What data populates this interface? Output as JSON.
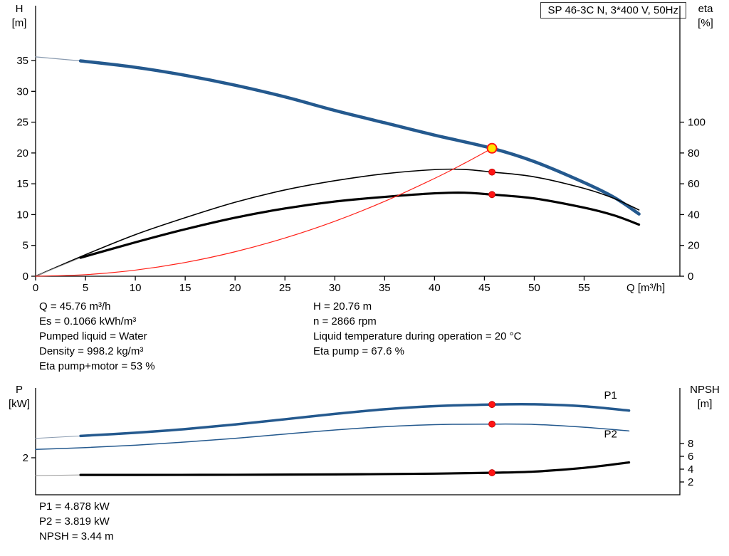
{
  "colors": {
    "curve_blue": "#24598e",
    "curve_black": "#000000",
    "system_red": "#ff2018",
    "dot_red": "#ff1414",
    "dot_stroke": "#c00000",
    "duty_yellow": "#ffe600"
  },
  "chart_data": [
    {
      "id": "qh-chart",
      "type": "line",
      "title_box": "SP 46-3C N, 3*400 V, 50Hz",
      "x_axis": {
        "label": "Q [m³/h]",
        "min": 0,
        "max": 64.6,
        "ticks": [
          0,
          5,
          10,
          15,
          20,
          25,
          30,
          35,
          40,
          45,
          50,
          55
        ]
      },
      "y_left": {
        "name": "H",
        "unit": "[m]",
        "min": 0,
        "max": 43.9,
        "ticks": [
          0,
          5,
          10,
          15,
          20,
          25,
          30,
          35
        ]
      },
      "y_right": {
        "name": "eta",
        "unit": "[%]",
        "min": 0,
        "max": 175.6,
        "ticks": [
          0,
          20,
          40,
          60,
          80,
          100
        ]
      },
      "curves": [
        {
          "name": "head-curve-lead",
          "axis": "left",
          "color": "#8a9bb0",
          "width": 1.2,
          "points": [
            [
              0,
              35.6
            ],
            [
              4.5,
              34.95
            ]
          ]
        },
        {
          "name": "head-curve",
          "axis": "left",
          "color": "#24598e",
          "width": 4.5,
          "points": [
            [
              4.5,
              34.95
            ],
            [
              10,
              33.9
            ],
            [
              15,
              32.6
            ],
            [
              20,
              31.0
            ],
            [
              25,
              29.1
            ],
            [
              30,
              26.9
            ],
            [
              35,
              24.9
            ],
            [
              40,
              22.9
            ],
            [
              45.76,
              20.76
            ],
            [
              50,
              18.6
            ],
            [
              55,
              15.2
            ],
            [
              58,
              12.8
            ],
            [
              60.5,
              10.1
            ]
          ]
        },
        {
          "name": "eta-pump-curve",
          "axis": "right",
          "color": "#000000",
          "width": 1.6,
          "points": [
            [
              0,
              0
            ],
            [
              5,
              14
            ],
            [
              10,
              27
            ],
            [
              15,
              38
            ],
            [
              20,
              48
            ],
            [
              25,
              56
            ],
            [
              30,
              62
            ],
            [
              35,
              66.5
            ],
            [
              40,
              69.2
            ],
            [
              43,
              69.3
            ],
            [
              45.76,
              67.6
            ],
            [
              50,
              64.5
            ],
            [
              55,
              57
            ],
            [
              58,
              50.5
            ],
            [
              60.5,
              43
            ]
          ]
        },
        {
          "name": "eta-pump-motor-lead",
          "axis": "right",
          "color": "#999999",
          "width": 1,
          "points": [
            [
              0,
              0
            ],
            [
              4.5,
              12
            ]
          ]
        },
        {
          "name": "eta-pump-motor-curve",
          "axis": "right",
          "color": "#000000",
          "width": 3.2,
          "points": [
            [
              4.5,
              12
            ],
            [
              10,
              22
            ],
            [
              15,
              30.5
            ],
            [
              20,
              38
            ],
            [
              25,
              44
            ],
            [
              30,
              48.5
            ],
            [
              35,
              51.5
            ],
            [
              40,
              53.8
            ],
            [
              43,
              54.2
            ],
            [
              45.76,
              53
            ],
            [
              50,
              50.5
            ],
            [
              55,
              44.5
            ],
            [
              58,
              39.5
            ],
            [
              60.5,
              33.5
            ]
          ]
        },
        {
          "name": "system-curve",
          "axis": "left",
          "color": "#ff2018",
          "width": 1.2,
          "points": [
            [
              0,
              0
            ],
            [
              5,
              0.25
            ],
            [
              10,
              0.99
            ],
            [
              15,
              2.23
            ],
            [
              20,
              3.97
            ],
            [
              25,
              6.2
            ],
            [
              30,
              8.92
            ],
            [
              35,
              12.15
            ],
            [
              40,
              15.87
            ],
            [
              43,
              18.33
            ],
            [
              45.76,
              20.76
            ]
          ]
        }
      ],
      "curve_labels": [],
      "markers": [
        {
          "name": "duty-point",
          "axis": "left",
          "q": 45.76,
          "v": 20.76,
          "style": "duty"
        },
        {
          "name": "eta-pump-point",
          "axis": "right",
          "q": 45.76,
          "v": 67.6,
          "style": "dot"
        },
        {
          "name": "eta-pump-motor-point",
          "axis": "right",
          "q": 45.76,
          "v": 53,
          "style": "dot"
        }
      ]
    },
    {
      "id": "power-npsh-chart",
      "type": "line",
      "x_axis": {
        "label": "",
        "min": 0,
        "max": 64.6,
        "ticks": []
      },
      "y_left": {
        "name": "P",
        "unit": "[kW]",
        "min": 0,
        "max": 5.77,
        "ticks": [
          2
        ]
      },
      "y_right": {
        "name": "NPSH",
        "unit": "[m]",
        "min": 0,
        "max": 16.67,
        "ticks": [
          2,
          4,
          6,
          8
        ]
      },
      "curves": [
        {
          "name": "p1-curve-lead",
          "axis": "left",
          "color": "#8a9bb0",
          "width": 1,
          "points": [
            [
              0,
              3.05
            ],
            [
              4.5,
              3.18
            ]
          ]
        },
        {
          "name": "p1-curve",
          "axis": "left",
          "color": "#24598e",
          "width": 3.5,
          "points": [
            [
              4.5,
              3.18
            ],
            [
              10,
              3.35
            ],
            [
              15,
              3.55
            ],
            [
              20,
              3.8
            ],
            [
              25,
              4.08
            ],
            [
              30,
              4.37
            ],
            [
              35,
              4.62
            ],
            [
              40,
              4.79
            ],
            [
              45.76,
              4.878
            ],
            [
              50,
              4.89
            ],
            [
              55,
              4.78
            ],
            [
              59.5,
              4.55
            ]
          ]
        },
        {
          "name": "p2-curve",
          "axis": "left",
          "color": "#24598e",
          "width": 1.5,
          "points": [
            [
              0,
              2.45
            ],
            [
              5,
              2.55
            ],
            [
              10,
              2.68
            ],
            [
              15,
              2.85
            ],
            [
              20,
              3.05
            ],
            [
              25,
              3.28
            ],
            [
              30,
              3.5
            ],
            [
              35,
              3.68
            ],
            [
              40,
              3.79
            ],
            [
              45.76,
              3.819
            ],
            [
              50,
              3.8
            ],
            [
              55,
              3.65
            ],
            [
              59.5,
              3.45
            ]
          ]
        },
        {
          "name": "npsh-curve-lead",
          "axis": "right",
          "color": "#999999",
          "width": 1,
          "points": [
            [
              0,
              3.0
            ],
            [
              4.5,
              3.1
            ]
          ]
        },
        {
          "name": "npsh-curve",
          "axis": "right",
          "color": "#000000",
          "width": 3.2,
          "points": [
            [
              4.5,
              3.1
            ],
            [
              10,
              3.1
            ],
            [
              20,
              3.12
            ],
            [
              30,
              3.18
            ],
            [
              40,
              3.3
            ],
            [
              45.76,
              3.44
            ],
            [
              50,
              3.62
            ],
            [
              55,
              4.2
            ],
            [
              59.5,
              5.05
            ]
          ]
        }
      ],
      "curve_labels": [
        {
          "text": "P1",
          "axis": "left",
          "q": 57.0,
          "v": 5.2,
          "color": "#24598e"
        },
        {
          "text": "P2",
          "axis": "left",
          "q": 57.0,
          "v": 3.1,
          "color": "#24598e"
        }
      ],
      "markers": [
        {
          "name": "p1-point",
          "axis": "left",
          "q": 45.76,
          "v": 4.878,
          "style": "dot"
        },
        {
          "name": "p2-point",
          "axis": "left",
          "q": 45.76,
          "v": 3.819,
          "style": "dot"
        },
        {
          "name": "npsh-point",
          "axis": "right",
          "q": 45.76,
          "v": 3.44,
          "style": "dot"
        }
      ]
    }
  ],
  "duty_info": {
    "left": [
      "Q = 45.76 m³/h",
      "Es = 0.1066 kWh/m³",
      "Pumped liquid = Water",
      "Density = 998.2 kg/m³",
      "Eta pump+motor = 53 %"
    ],
    "right": [
      "H = 20.76 m",
      "n = 2866 rpm",
      "Liquid temperature during operation = 20 °C",
      "Eta pump = 67.6 %"
    ]
  },
  "power_results": [
    "P1 = 4.878 kW",
    "P2 = 3.819 kW",
    "NPSH = 3.44 m"
  ]
}
